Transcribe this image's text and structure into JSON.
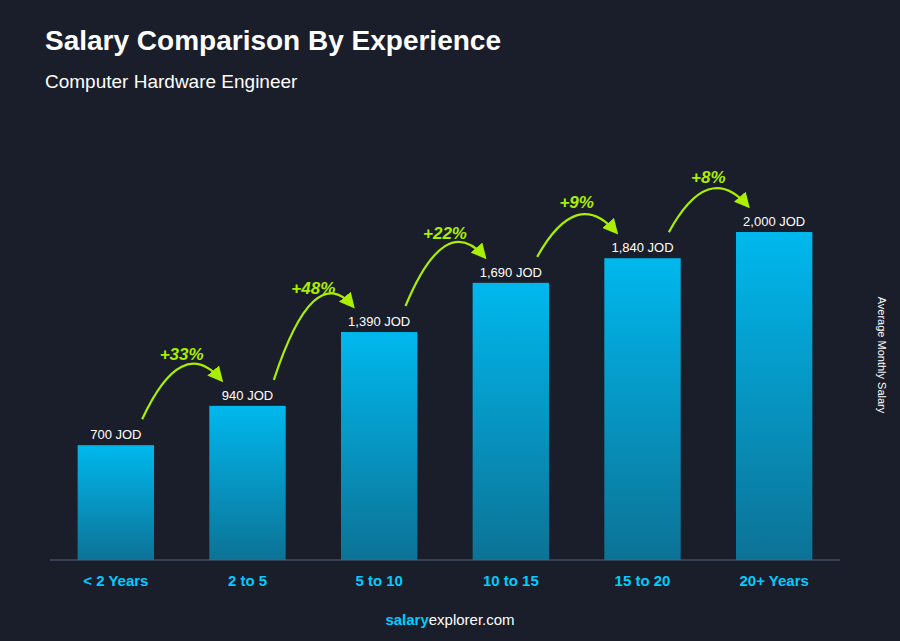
{
  "chart_data": {
    "type": "bar",
    "title": "Salary Comparison By Experience",
    "subtitle": "Computer Hardware Engineer",
    "ylabel": "Average Monthly Salary",
    "categories": [
      "< 2 Years",
      "2 to 5",
      "5 to 10",
      "10 to 15",
      "15 to 20",
      "20+ Years"
    ],
    "values": [
      700,
      940,
      1390,
      1690,
      1840,
      2000
    ],
    "value_labels": [
      "700 JOD",
      "940 JOD",
      "1,390 JOD",
      "1,690 JOD",
      "1,840 JOD",
      "2,000 JOD"
    ],
    "annotations": [
      "+33%",
      "+48%",
      "+22%",
      "+9%",
      "+8%"
    ],
    "footer": [
      "salary",
      "explorer.com"
    ],
    "color": "#00b8ee",
    "ylim": [
      0,
      2500
    ],
    "data_labels": true,
    "tick_labels": "x",
    "grid": false
  }
}
